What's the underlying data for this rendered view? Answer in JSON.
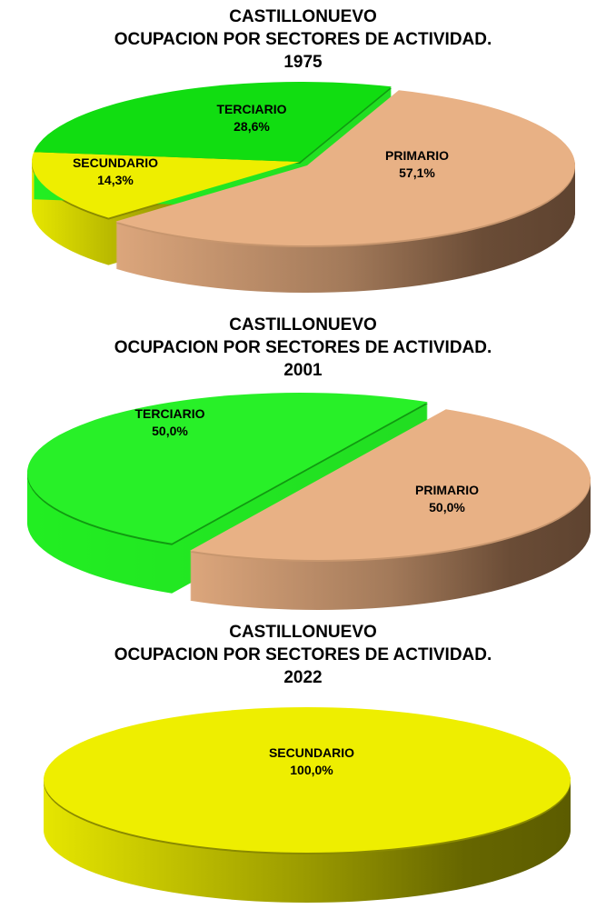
{
  "chart_data": [
    {
      "type": "pie",
      "title": [
        "CASTILLONUEVO",
        "OCUPACION POR SECTORES DE ACTIVIDAD.",
        "1975"
      ],
      "slices": [
        {
          "name": "PRIMARIO",
          "value": 57.1,
          "label": "57,1%",
          "color": "#e8b185"
        },
        {
          "name": "SECUNDARIO",
          "value": 14.3,
          "label": "14,3%",
          "color": "#eeee00"
        },
        {
          "name": "TERCIARIO",
          "value": 28.6,
          "label": "28,6%",
          "color": "#11dd11"
        }
      ]
    },
    {
      "type": "pie",
      "title": [
        "CASTILLONUEVO",
        "OCUPACION POR SECTORES DE ACTIVIDAD.",
        "2001"
      ],
      "slices": [
        {
          "name": "PRIMARIO",
          "value": 50.0,
          "label": "50,0%",
          "color": "#e8b185"
        },
        {
          "name": "TERCIARIO",
          "value": 50.0,
          "label": "50,0%",
          "color": "#28f028"
        }
      ]
    },
    {
      "type": "pie",
      "title": [
        "CASTILLONUEVO",
        "OCUPACION POR SECTORES DE ACTIVIDAD.",
        "2022"
      ],
      "slices": [
        {
          "name": "SECUNDARIO",
          "value": 100.0,
          "label": "100,0%",
          "color": "#eeee00"
        }
      ]
    }
  ]
}
